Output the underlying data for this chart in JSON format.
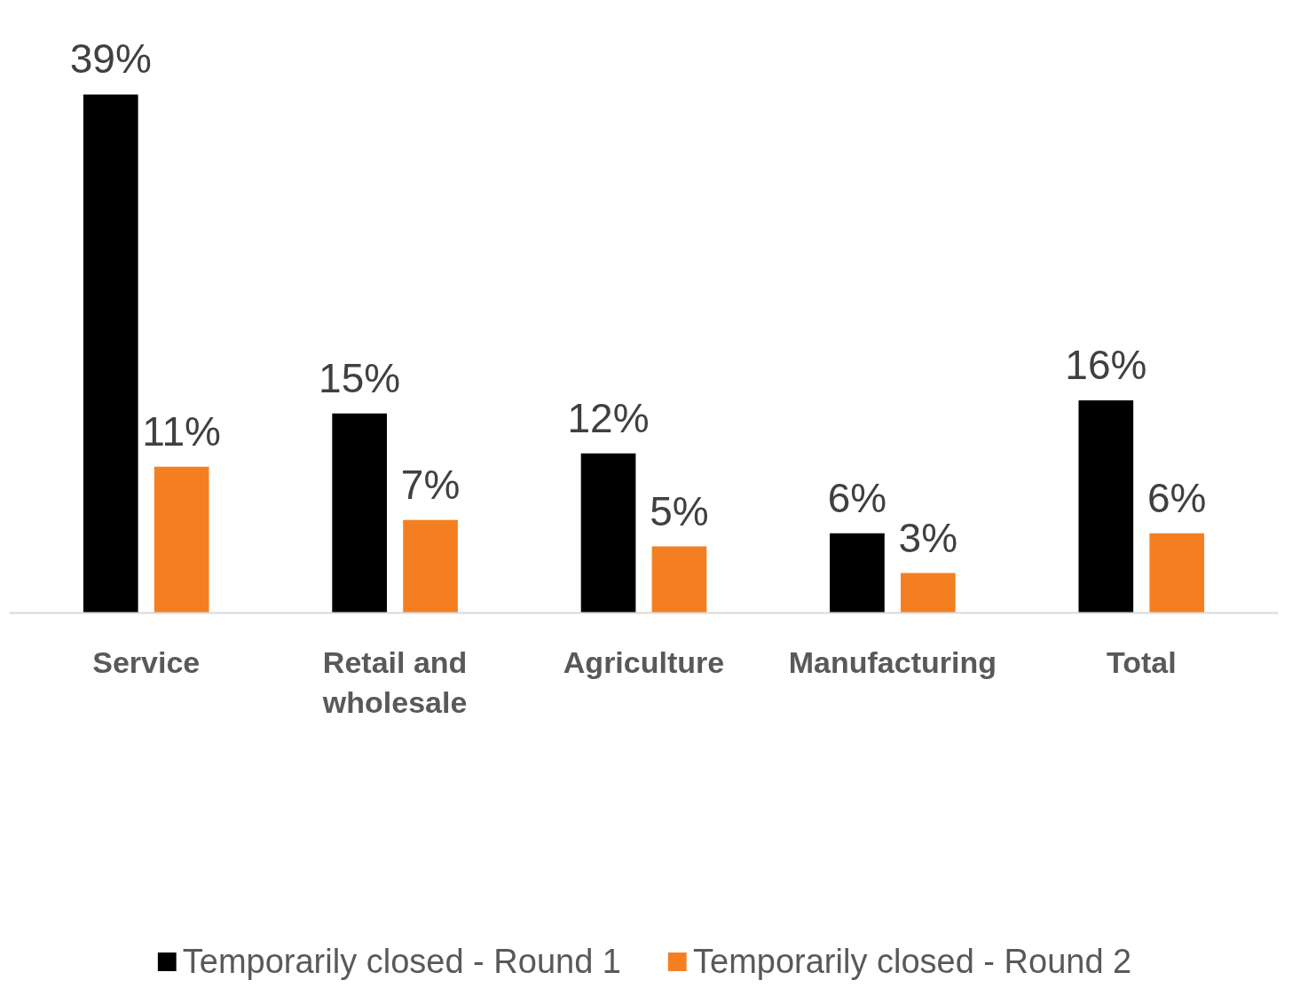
{
  "chart_data": {
    "type": "bar",
    "categories": [
      "Service",
      "Retail and wholesale",
      "Agriculture",
      "Manufacturing",
      "Total"
    ],
    "series": [
      {
        "name": "Temporarily closed - Round 1",
        "color": "#000000",
        "values": [
          39,
          15,
          12,
          6,
          16
        ],
        "value_labels": [
          "39%",
          "15%",
          "12%",
          "6%",
          "16%"
        ]
      },
      {
        "name": "Temporarily closed - Round 2",
        "color": "#f47f20",
        "values": [
          11,
          7,
          5,
          3,
          6
        ],
        "value_labels": [
          "11%",
          "7%",
          "5%",
          "3%",
          "6%"
        ]
      }
    ],
    "legend": "bottom",
    "grid": false
  }
}
